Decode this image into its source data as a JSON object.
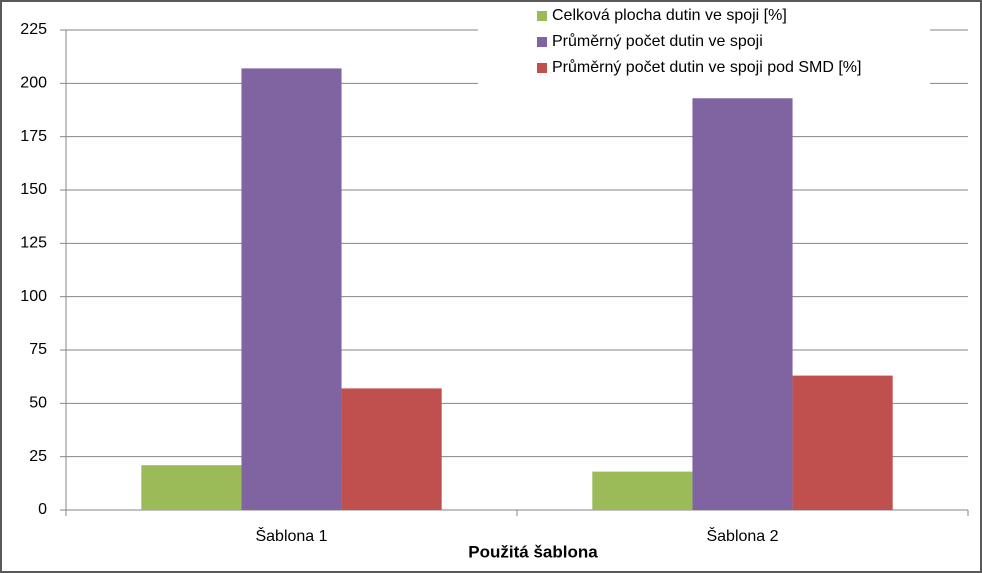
{
  "chart_data": {
    "type": "bar",
    "x_label": "Použitá šablona",
    "categories": [
      "Šablona 1",
      "Šablona 2"
    ],
    "series": [
      {
        "name": "Celková plocha dutin ve spoji [%]",
        "color": "#9bbb59",
        "values": [
          21,
          18
        ]
      },
      {
        "name": "Průměrný počet dutin ve spoji",
        "color": "#8064a2",
        "values": [
          207,
          193
        ]
      },
      {
        "name": "Průměrný počet dutin ve spoji pod SMD [%]",
        "color": "#c0504d",
        "values": [
          57,
          63
        ]
      }
    ],
    "ylim": [
      0,
      225
    ],
    "yticks": [
      0,
      25,
      50,
      75,
      100,
      125,
      150,
      175,
      200,
      225
    ],
    "grid": true,
    "legend": "top-right"
  }
}
